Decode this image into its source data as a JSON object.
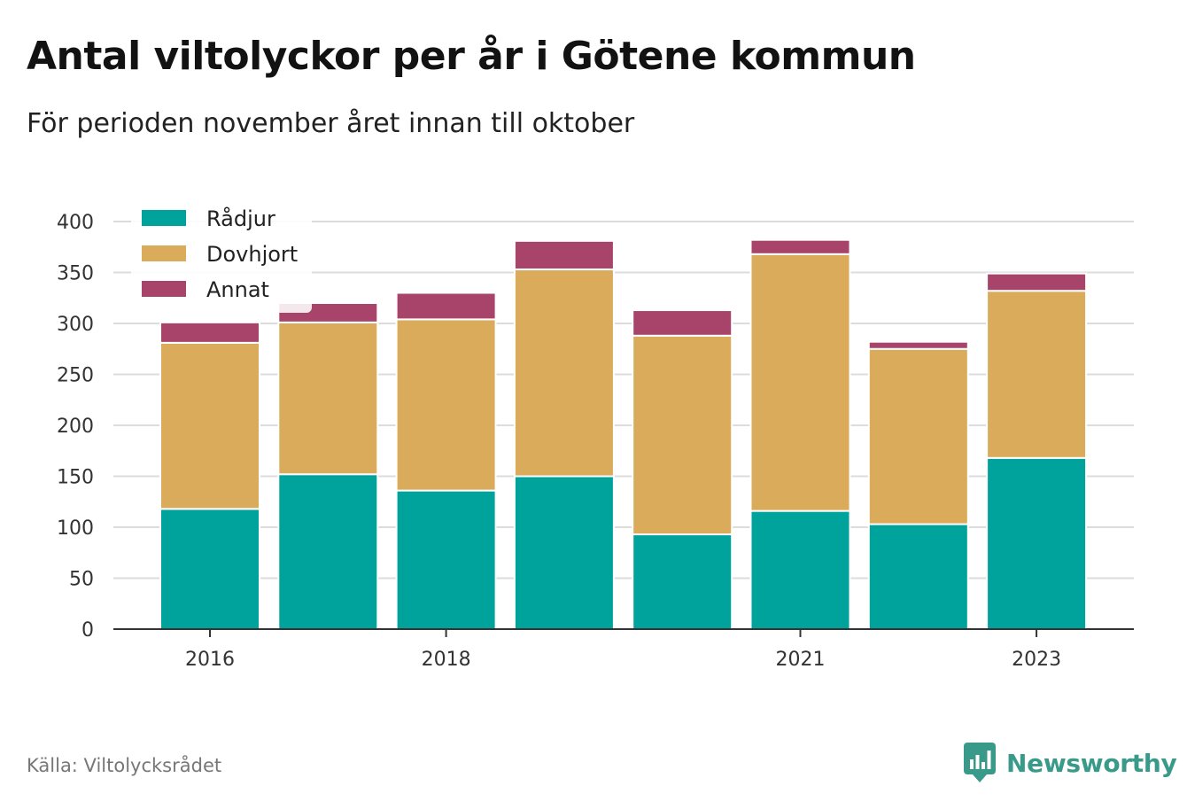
{
  "title": "Antal viltolyckor per år i Götene kommun",
  "subtitle": "För perioden november året innan till oktober",
  "source": "Källa: Viltolycksrådet",
  "brand": "Newsworthy",
  "colors": {
    "Rådjur": "#00a39b",
    "Dovhjort": "#d9ab5a",
    "Annat": "#a8436a",
    "grid": "#dcdcdc",
    "axis": "#333333",
    "brand": "#3a9a8a"
  },
  "chart_data": {
    "type": "bar",
    "stacked": true,
    "categories": [
      "2016",
      "2017",
      "2018",
      "2019",
      "2020",
      "2021",
      "2022",
      "2023"
    ],
    "x_tick_labels": [
      "2016",
      "",
      "2018",
      "",
      "",
      "2021",
      "",
      "2023"
    ],
    "series": [
      {
        "name": "Rådjur",
        "values": [
          118,
          152,
          136,
          150,
          93,
          116,
          103,
          168
        ]
      },
      {
        "name": "Dovhjort",
        "values": [
          163,
          149,
          168,
          203,
          195,
          252,
          172,
          164
        ]
      },
      {
        "name": "Annat",
        "values": [
          20,
          19,
          26,
          28,
          25,
          14,
          7,
          17
        ]
      }
    ],
    "ylim": [
      0,
      400
    ],
    "yticks": [
      0,
      50,
      100,
      150,
      200,
      250,
      300,
      350,
      400
    ],
    "grid": true,
    "legend": "top-left"
  }
}
